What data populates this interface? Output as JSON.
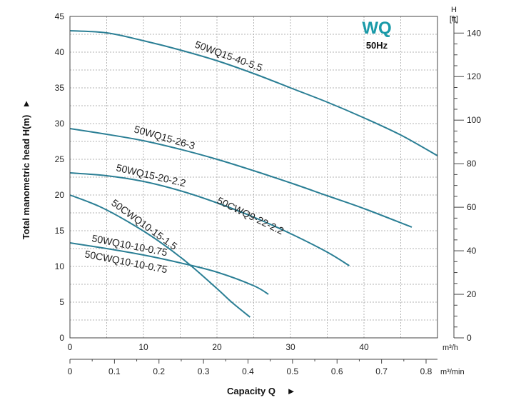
{
  "chart_data": {
    "type": "line",
    "brand": "WQ",
    "subtitle": "50Hz",
    "brand_color": "#1a9aa8",
    "curve_color": "#2b7f95",
    "grid_color": "#b3b3b3",
    "ylabel": "Total manometric head H(m)",
    "xlabel": "Capacity Q",
    "arrow_glyph": "▲",
    "x_arrow_glyph": "►",
    "xlim": [
      0,
      50
    ],
    "ylim": [
      0,
      45
    ],
    "x_ticks": [
      "0",
      "10",
      "20",
      "30",
      "40"
    ],
    "x_tick_values": [
      0,
      10,
      20,
      30,
      40
    ],
    "x_unit": "m³/h",
    "x2_ticks": [
      "0",
      "0.1",
      "0.2",
      "0.3",
      "0.4",
      "0.5",
      "0.6",
      "0.7",
      "0.8"
    ],
    "x2_tick_values": [
      0,
      0.1,
      0.2,
      0.3,
      0.4,
      0.5,
      0.6,
      0.7,
      0.8
    ],
    "x2_unit": "m³/min",
    "y_ticks": [
      "0",
      "5",
      "10",
      "15",
      "20",
      "25",
      "30",
      "35",
      "40",
      "45"
    ],
    "y_tick_values": [
      0,
      5,
      10,
      15,
      20,
      25,
      30,
      35,
      40,
      45
    ],
    "y2_label_top": "H",
    "y2_label_unit": "[ft]",
    "y2_ticks": [
      "0",
      "20",
      "40",
      "60",
      "80",
      "100",
      "120",
      "140"
    ],
    "y2_tick_values": [
      0,
      20,
      40,
      60,
      80,
      100,
      120,
      140
    ],
    "series": [
      {
        "name": "50WQ15-40-5.5",
        "x": [
          0,
          5,
          10,
          15,
          20,
          25,
          30,
          35,
          40,
          45,
          50
        ],
        "y": [
          43,
          42.7,
          41.6,
          40.3,
          38.8,
          37,
          35,
          33,
          30.8,
          28.4,
          25.5
        ]
      },
      {
        "name": "50WQ15-26-3",
        "x": [
          0,
          5,
          10,
          15,
          20,
          25,
          30,
          35,
          40,
          46.5
        ],
        "y": [
          29.3,
          28.5,
          27.6,
          26.4,
          25,
          23.4,
          21.7,
          19.9,
          18.1,
          15.5
        ]
      },
      {
        "name": "50WQ15-20-2.2",
        "x": [
          0,
          5,
          10,
          15,
          20,
          25,
          30,
          35,
          38
        ],
        "y": [
          23.1,
          22.7,
          21.9,
          20.6,
          18.9,
          16.9,
          14.6,
          12,
          10.1
        ]
      },
      {
        "name": "50CWQ9-22-2.2",
        "x": [],
        "y": []
      },
      {
        "name": "50CWQ10-15-1.5",
        "x": [
          0,
          4,
          8,
          12,
          16,
          20,
          22,
          24.5
        ],
        "y": [
          20,
          18.4,
          16.2,
          13.6,
          10.5,
          6.9,
          5,
          2.9
        ]
      },
      {
        "name": "50WQ10-10-0.75",
        "x": [
          0,
          5,
          10,
          15,
          20,
          25,
          27
        ],
        "y": [
          13.3,
          12.5,
          11.6,
          10.5,
          9.2,
          7.3,
          6.1
        ]
      },
      {
        "name": "50CWQ10-10-0.75",
        "x": [],
        "y": []
      }
    ]
  }
}
